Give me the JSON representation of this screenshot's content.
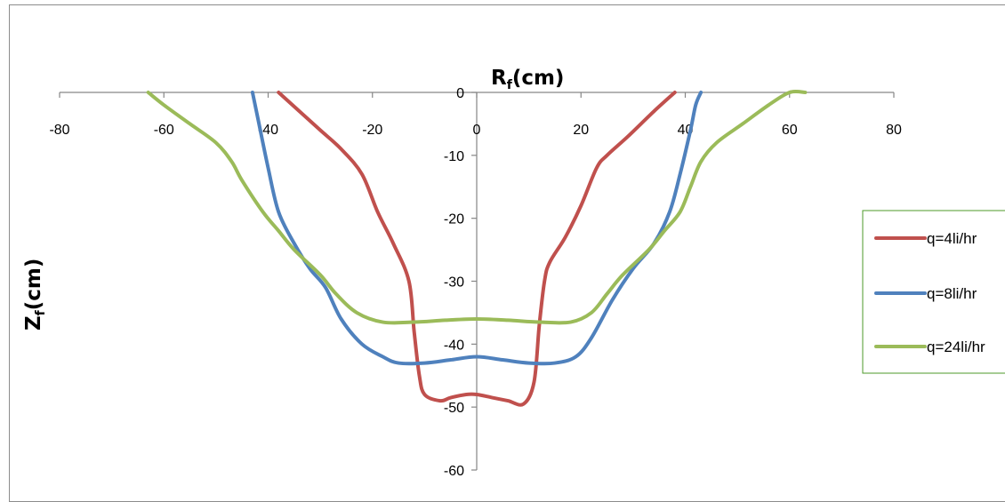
{
  "chart_data": {
    "type": "line",
    "title": "",
    "xlabel": "R",
    "xlabel_sub": "f",
    "xlabel_unit": "(cm)",
    "ylabel": "Z",
    "ylabel_sub": "f",
    "ylabel_unit": "(cm)",
    "xlim": [
      -80,
      80
    ],
    "ylim": [
      -60,
      0
    ],
    "x_ticks": [
      "-80",
      "-60",
      "-40",
      "-20",
      "0",
      "20",
      "40",
      "60",
      "80"
    ],
    "y_ticks": [
      "0",
      "-10",
      "-20",
      "-30",
      "-40",
      "-50",
      "-60"
    ],
    "grid": false,
    "legend_position": "right",
    "series": [
      {
        "name": "q=4li/hr",
        "color": "#c0504d",
        "points": [
          [
            -38,
            0
          ],
          [
            -34,
            -3
          ],
          [
            -30,
            -6
          ],
          [
            -26,
            -9
          ],
          [
            -22,
            -13
          ],
          [
            -19,
            -19
          ],
          [
            -16,
            -24
          ],
          [
            -13,
            -30
          ],
          [
            -12,
            -38
          ],
          [
            -11,
            -45
          ],
          [
            -10,
            -48
          ],
          [
            -7,
            -49
          ],
          [
            -5,
            -48.5
          ],
          [
            -2,
            -48
          ],
          [
            0,
            -48
          ],
          [
            3,
            -48.5
          ],
          [
            6,
            -49
          ],
          [
            9,
            -49.5
          ],
          [
            11,
            -46
          ],
          [
            12,
            -37
          ],
          [
            13,
            -30
          ],
          [
            14,
            -27
          ],
          [
            17,
            -23
          ],
          [
            20,
            -18
          ],
          [
            23,
            -12
          ],
          [
            25,
            -10
          ],
          [
            29,
            -7
          ],
          [
            34,
            -3
          ],
          [
            38,
            0
          ]
        ]
      },
      {
        "name": "q=8li/hr",
        "color": "#4f81bd",
        "points": [
          [
            -43,
            0
          ],
          [
            -42,
            -4
          ],
          [
            -40,
            -12
          ],
          [
            -38,
            -19
          ],
          [
            -35,
            -24
          ],
          [
            -32,
            -28
          ],
          [
            -29,
            -31
          ],
          [
            -26,
            -36
          ],
          [
            -22,
            -40
          ],
          [
            -18,
            -42
          ],
          [
            -15,
            -43
          ],
          [
            -10,
            -43
          ],
          [
            -5,
            -42.5
          ],
          [
            0,
            -42
          ],
          [
            5,
            -42.5
          ],
          [
            10,
            -43
          ],
          [
            15,
            -43
          ],
          [
            19,
            -42
          ],
          [
            22,
            -39
          ],
          [
            26,
            -33
          ],
          [
            30,
            -28
          ],
          [
            34,
            -24
          ],
          [
            37,
            -19
          ],
          [
            39,
            -13
          ],
          [
            41,
            -6
          ],
          [
            42,
            -2
          ],
          [
            43,
            0
          ]
        ]
      },
      {
        "name": "q=24li/hr",
        "color": "#9bbb59",
        "points": [
          [
            -63,
            0
          ],
          [
            -60,
            -2
          ],
          [
            -55,
            -5
          ],
          [
            -50,
            -8
          ],
          [
            -47,
            -11
          ],
          [
            -45,
            -14
          ],
          [
            -41,
            -19
          ],
          [
            -38,
            -22
          ],
          [
            -35,
            -25
          ],
          [
            -30,
            -29
          ],
          [
            -27,
            -32
          ],
          [
            -23,
            -35
          ],
          [
            -18,
            -36.5
          ],
          [
            -12,
            -36.5
          ],
          [
            -6,
            -36.2
          ],
          [
            0,
            -36
          ],
          [
            6,
            -36.2
          ],
          [
            12,
            -36.5
          ],
          [
            18,
            -36.5
          ],
          [
            22,
            -35
          ],
          [
            25,
            -32
          ],
          [
            28,
            -29
          ],
          [
            33,
            -25
          ],
          [
            36,
            -22
          ],
          [
            39,
            -19
          ],
          [
            41,
            -15
          ],
          [
            43,
            -11
          ],
          [
            46,
            -8
          ],
          [
            51,
            -5
          ],
          [
            56,
            -2
          ],
          [
            60,
            0
          ],
          [
            63,
            0
          ]
        ]
      }
    ]
  }
}
